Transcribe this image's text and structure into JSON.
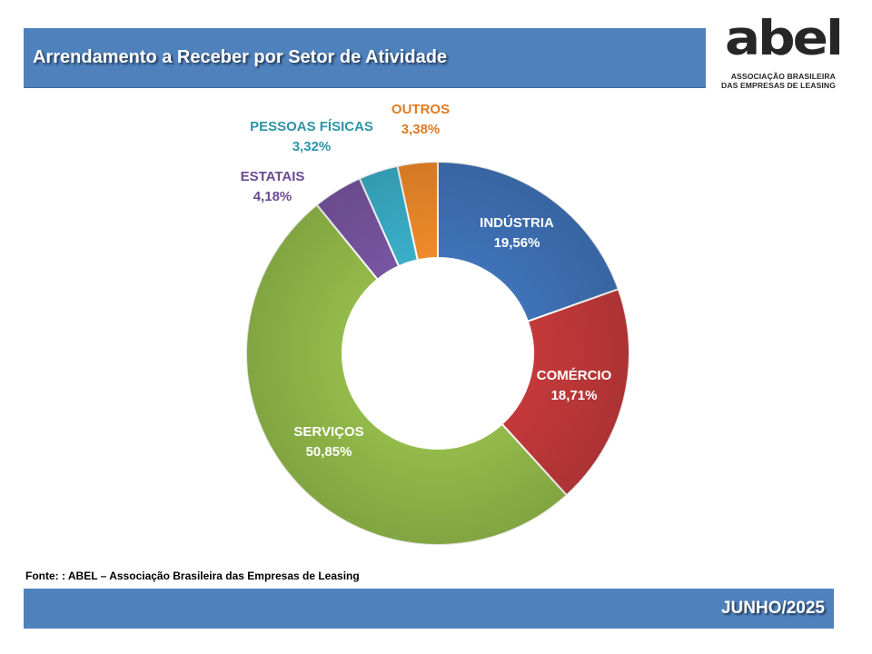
{
  "header": {
    "title": "Arrendamento a Receber por Setor de Atividade"
  },
  "logo": {
    "word": "abel",
    "line1": "ASSOCIAÇÃO BRASILEIRA",
    "line2": "DAS EMPRESAS DE LEASING"
  },
  "source": "Fonte: : ABEL – Associação Brasileira das Empresas de Leasing",
  "footer": {
    "date": "JUNHO/2025"
  },
  "chart_data": {
    "type": "pie",
    "title": "",
    "donut": true,
    "legend": "none",
    "slices": [
      {
        "label": "INDÚSTRIA",
        "value": 19.56,
        "value_label": "19,56%",
        "color": "#3f72b8",
        "label_color": "#ffffff"
      },
      {
        "label": "COMÉRCIO",
        "value": 18.71,
        "value_label": "18,71%",
        "color": "#c4393a",
        "label_color": "#ffffff"
      },
      {
        "label": "SERVIÇOS",
        "value": 50.85,
        "value_label": "50,85%",
        "color": "#93bb4a",
        "label_color": "#ffffff"
      },
      {
        "label": "ESTATAIS",
        "value": 4.18,
        "value_label": "4,18%",
        "color": "#7855a0",
        "label_color": "#6b4a94"
      },
      {
        "label": "PESSOAS FÍSICAS",
        "value": 3.32,
        "value_label": "3,32%",
        "color": "#3aafc8",
        "label_color": "#2e93a8"
      },
      {
        "label": "OUTROS",
        "value": 3.38,
        "value_label": "3,38%",
        "color": "#ef8a2a",
        "label_color": "#e07a1f"
      }
    ]
  }
}
